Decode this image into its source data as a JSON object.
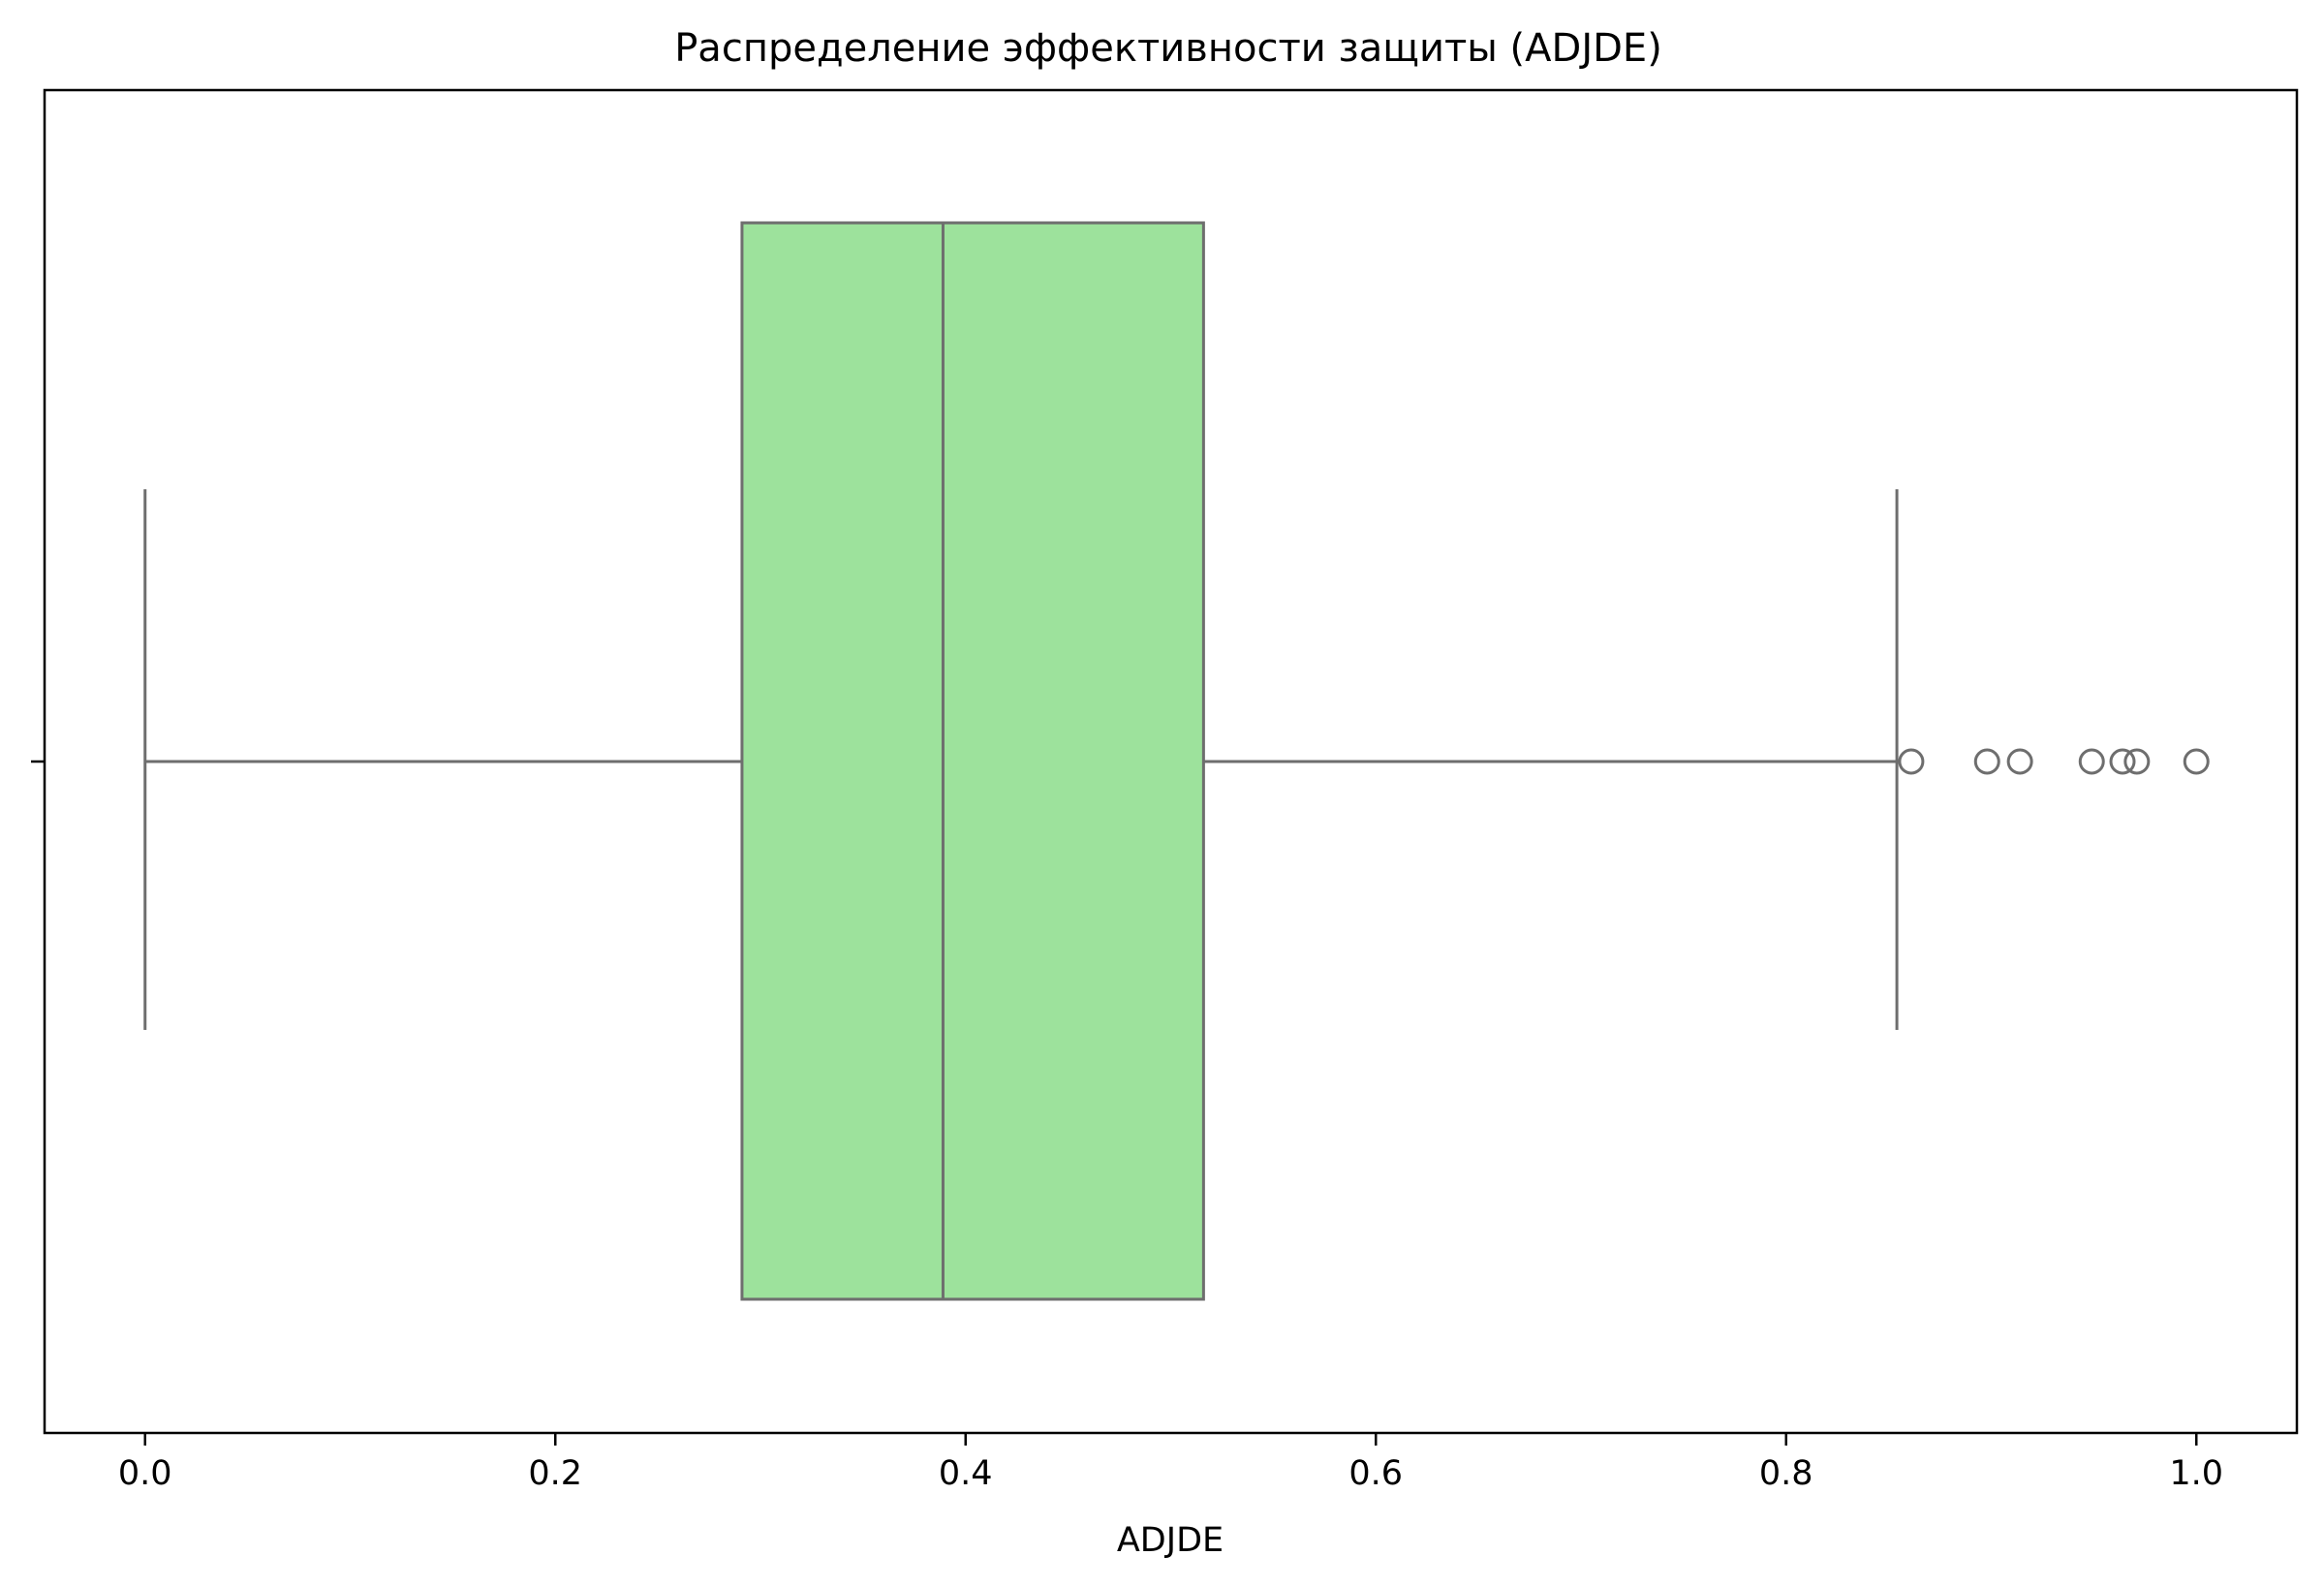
{
  "chart_data": {
    "type": "boxplot",
    "orientation": "horizontal",
    "title": "Распределение эффективности защиты (ADJDE)",
    "xlabel": "ADJDE",
    "ylabel": "",
    "xlim": [
      -0.049,
      1.049
    ],
    "xticks": [
      0.0,
      0.2,
      0.4,
      0.6,
      0.8,
      1.0
    ],
    "xtick_labels": [
      "0.0",
      "0.2",
      "0.4",
      "0.6",
      "0.8",
      "1.0"
    ],
    "grid": false,
    "legend": "none",
    "box": {
      "whisker_low": 0.0,
      "q1": 0.291,
      "median": 0.389,
      "q3": 0.516,
      "whisker_high": 0.854
    },
    "outliers": [
      0.861,
      0.898,
      0.914,
      0.949,
      0.964,
      0.971,
      1.0
    ],
    "colors": {
      "box_fill": "#9de29c",
      "line": "#6e6e6e",
      "axes": "#000000"
    }
  }
}
